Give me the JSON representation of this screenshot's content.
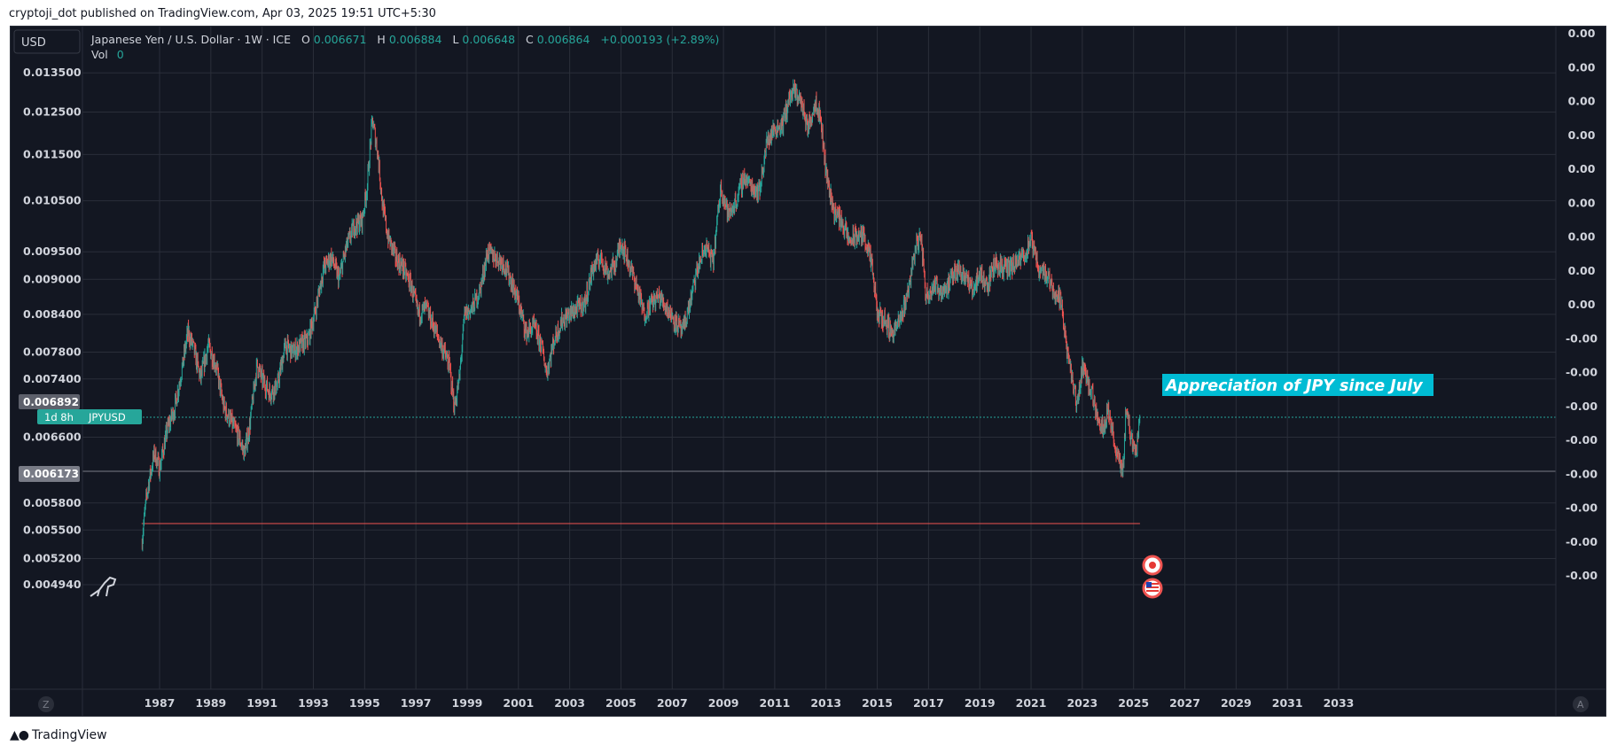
{
  "header": {
    "publish_line": "cryptoji_dot published on TradingView.com, Apr 03, 2025 19:51 UTC+5:30"
  },
  "toolbar": {
    "currency_button": "USD",
    "scale_left_button": "Z",
    "scale_right_button": "A"
  },
  "legend": {
    "symbol_line": "Japanese Yen / U.S. Dollar · 1W · ICE",
    "o_label": "O",
    "o_value": "0.006671",
    "h_label": "H",
    "h_value": "0.006884",
    "l_label": "L",
    "l_value": "0.006648",
    "c_label": "C",
    "c_value": "0.006864",
    "change": "+0.000193 (+2.89%)",
    "vol_label": "Vol",
    "vol_value": "0"
  },
  "badges": {
    "countdown": "1d 8h",
    "symbol": "JPYUSD",
    "crosshair_price": "0.006892",
    "line_price": "0.006173"
  },
  "annotation": {
    "text": "Appreciation of JPY since July"
  },
  "footer": {
    "logo_icon": "tradingview-logo-icon",
    "brand": "TradingView"
  },
  "colors": {
    "background": "#131722",
    "grid": "#2a2e39",
    "up": "#26a69a",
    "down": "#ef5350",
    "annotation_bg": "#00bcd4",
    "axis_text": "#d1d4dc"
  },
  "chart_data": {
    "type": "candlestick",
    "interval": "1W",
    "symbol": "JPYUSD",
    "scale": "log",
    "ylim": [
      0.00494,
      0.0136
    ],
    "xlim": [
      1985.5,
      2035
    ],
    "y_tick_labels": [
      "0.013500",
      "0.012500",
      "0.011500",
      "0.010500",
      "0.009500",
      "0.009000",
      "0.008400",
      "0.007800",
      "0.007400",
      "0.006600",
      "0.005800",
      "0.005500",
      "0.005200",
      "0.004940"
    ],
    "x_tick_labels": [
      "1987",
      "1989",
      "1991",
      "1993",
      "1995",
      "1997",
      "1999",
      "2001",
      "2003",
      "2005",
      "2007",
      "2009",
      "2011",
      "2013",
      "2015",
      "2017",
      "2019",
      "2021",
      "2023",
      "2025",
      "2027",
      "2029",
      "2031",
      "2033"
    ],
    "right_axis_labels": [
      "0.00",
      "0.00",
      "0.00",
      "0.00",
      "0.00",
      "0.00",
      "0.00",
      "0.00",
      "0.00",
      "-0.00",
      "-0.00",
      "-0.00",
      "-0.00",
      "-0.00",
      "-0.00",
      "-0.00",
      "-0.00"
    ],
    "horizontal_lines": [
      {
        "price": 0.006864,
        "style": "dotted",
        "color": "#26a69a"
      },
      {
        "price": 0.006173,
        "style": "solid",
        "color": "#787b86"
      },
      {
        "price": 0.00557,
        "style": "solid",
        "color": "#ef5350"
      }
    ],
    "price_path": [
      [
        1986.3,
        0.00535
      ],
      [
        1986.5,
        0.0059
      ],
      [
        1986.8,
        0.0064
      ],
      [
        1987.0,
        0.0062
      ],
      [
        1987.3,
        0.0067
      ],
      [
        1987.6,
        0.007
      ],
      [
        1987.9,
        0.0076
      ],
      [
        1988.1,
        0.0081
      ],
      [
        1988.3,
        0.0079
      ],
      [
        1988.6,
        0.0074
      ],
      [
        1988.9,
        0.0079
      ],
      [
        1989.2,
        0.0076
      ],
      [
        1989.5,
        0.007
      ],
      [
        1989.8,
        0.0068
      ],
      [
        1990.1,
        0.0066
      ],
      [
        1990.3,
        0.0064
      ],
      [
        1990.5,
        0.0067
      ],
      [
        1990.8,
        0.0076
      ],
      [
        1991.0,
        0.0074
      ],
      [
        1991.3,
        0.0072
      ],
      [
        1991.6,
        0.0073
      ],
      [
        1991.9,
        0.0079
      ],
      [
        1992.2,
        0.0078
      ],
      [
        1992.5,
        0.0079
      ],
      [
        1992.8,
        0.008
      ],
      [
        1993.1,
        0.0085
      ],
      [
        1993.4,
        0.0092
      ],
      [
        1993.7,
        0.0094
      ],
      [
        1994.0,
        0.009
      ],
      [
        1994.3,
        0.0096
      ],
      [
        1994.6,
        0.01
      ],
      [
        1994.9,
        0.0101
      ],
      [
        1995.1,
        0.0108
      ],
      [
        1995.3,
        0.0123
      ],
      [
        1995.5,
        0.0116
      ],
      [
        1995.7,
        0.0104
      ],
      [
        1995.9,
        0.0098
      ],
      [
        1996.2,
        0.0094
      ],
      [
        1996.5,
        0.0092
      ],
      [
        1996.8,
        0.0089
      ],
      [
        1997.1,
        0.0084
      ],
      [
        1997.4,
        0.0085
      ],
      [
        1997.7,
        0.0082
      ],
      [
        1998.0,
        0.0079
      ],
      [
        1998.3,
        0.0076
      ],
      [
        1998.5,
        0.007
      ],
      [
        1998.7,
        0.0074
      ],
      [
        1998.9,
        0.0084
      ],
      [
        1999.2,
        0.0085
      ],
      [
        1999.5,
        0.0088
      ],
      [
        1999.8,
        0.0095
      ],
      [
        2000.1,
        0.0094
      ],
      [
        2000.4,
        0.0093
      ],
      [
        2000.7,
        0.009
      ],
      [
        2001.0,
        0.0086
      ],
      [
        2001.3,
        0.0081
      ],
      [
        2001.6,
        0.0082
      ],
      [
        2001.9,
        0.0079
      ],
      [
        2002.1,
        0.0075
      ],
      [
        2002.4,
        0.008
      ],
      [
        2002.7,
        0.0083
      ],
      [
        2003.0,
        0.0084
      ],
      [
        2003.3,
        0.0085
      ],
      [
        2003.6,
        0.0086
      ],
      [
        2003.9,
        0.0092
      ],
      [
        2004.2,
        0.0094
      ],
      [
        2004.5,
        0.0091
      ],
      [
        2004.8,
        0.0093
      ],
      [
        2005.0,
        0.0097
      ],
      [
        2005.3,
        0.0093
      ],
      [
        2005.6,
        0.0089
      ],
      [
        2005.9,
        0.0084
      ],
      [
        2006.2,
        0.0086
      ],
      [
        2006.5,
        0.0087
      ],
      [
        2006.8,
        0.0085
      ],
      [
        2007.1,
        0.0083
      ],
      [
        2007.4,
        0.0081
      ],
      [
        2007.7,
        0.0086
      ],
      [
        2008.0,
        0.0092
      ],
      [
        2008.3,
        0.0096
      ],
      [
        2008.6,
        0.0093
      ],
      [
        2008.9,
        0.0108
      ],
      [
        2009.2,
        0.0102
      ],
      [
        2009.5,
        0.0105
      ],
      [
        2009.8,
        0.011
      ],
      [
        2010.1,
        0.0108
      ],
      [
        2010.4,
        0.0107
      ],
      [
        2010.7,
        0.0118
      ],
      [
        2011.0,
        0.0121
      ],
      [
        2011.3,
        0.0122
      ],
      [
        2011.6,
        0.0129
      ],
      [
        2011.8,
        0.013
      ],
      [
        2012.0,
        0.0128
      ],
      [
        2012.3,
        0.0121
      ],
      [
        2012.6,
        0.0128
      ],
      [
        2012.8,
        0.0123
      ],
      [
        2013.0,
        0.0111
      ],
      [
        2013.3,
        0.0103
      ],
      [
        2013.6,
        0.0101
      ],
      [
        2013.9,
        0.0097
      ],
      [
        2014.2,
        0.0098
      ],
      [
        2014.5,
        0.0098
      ],
      [
        2014.8,
        0.0092
      ],
      [
        2015.0,
        0.0084
      ],
      [
        2015.3,
        0.0083
      ],
      [
        2015.6,
        0.0081
      ],
      [
        2015.9,
        0.0083
      ],
      [
        2016.2,
        0.0088
      ],
      [
        2016.5,
        0.0096
      ],
      [
        2016.7,
        0.0098
      ],
      [
        2016.9,
        0.0087
      ],
      [
        2017.2,
        0.0089
      ],
      [
        2017.5,
        0.0088
      ],
      [
        2017.8,
        0.0089
      ],
      [
        2018.1,
        0.0092
      ],
      [
        2018.4,
        0.0091
      ],
      [
        2018.7,
        0.0088
      ],
      [
        2019.0,
        0.0091
      ],
      [
        2019.3,
        0.0089
      ],
      [
        2019.6,
        0.0093
      ],
      [
        2019.9,
        0.0092
      ],
      [
        2020.2,
        0.0092
      ],
      [
        2020.5,
        0.0093
      ],
      [
        2020.8,
        0.0095
      ],
      [
        2021.0,
        0.0097
      ],
      [
        2021.3,
        0.0092
      ],
      [
        2021.6,
        0.0091
      ],
      [
        2021.9,
        0.0088
      ],
      [
        2022.2,
        0.0086
      ],
      [
        2022.4,
        0.0078
      ],
      [
        2022.6,
        0.0074
      ],
      [
        2022.8,
        0.007
      ],
      [
        2023.0,
        0.0076
      ],
      [
        2023.2,
        0.0074
      ],
      [
        2023.5,
        0.007
      ],
      [
        2023.8,
        0.0067
      ],
      [
        2024.0,
        0.007
      ],
      [
        2024.2,
        0.0066
      ],
      [
        2024.4,
        0.0063
      ],
      [
        2024.6,
        0.0062
      ],
      [
        2024.7,
        0.007
      ],
      [
        2024.9,
        0.0066
      ],
      [
        2025.1,
        0.0064
      ],
      [
        2025.25,
        0.006864
      ]
    ],
    "event_markers": [
      {
        "x": 2025.1,
        "icon": "japan-flag-icon"
      },
      {
        "x": 2025.1,
        "icon": "usa-flag-icon"
      }
    ]
  }
}
